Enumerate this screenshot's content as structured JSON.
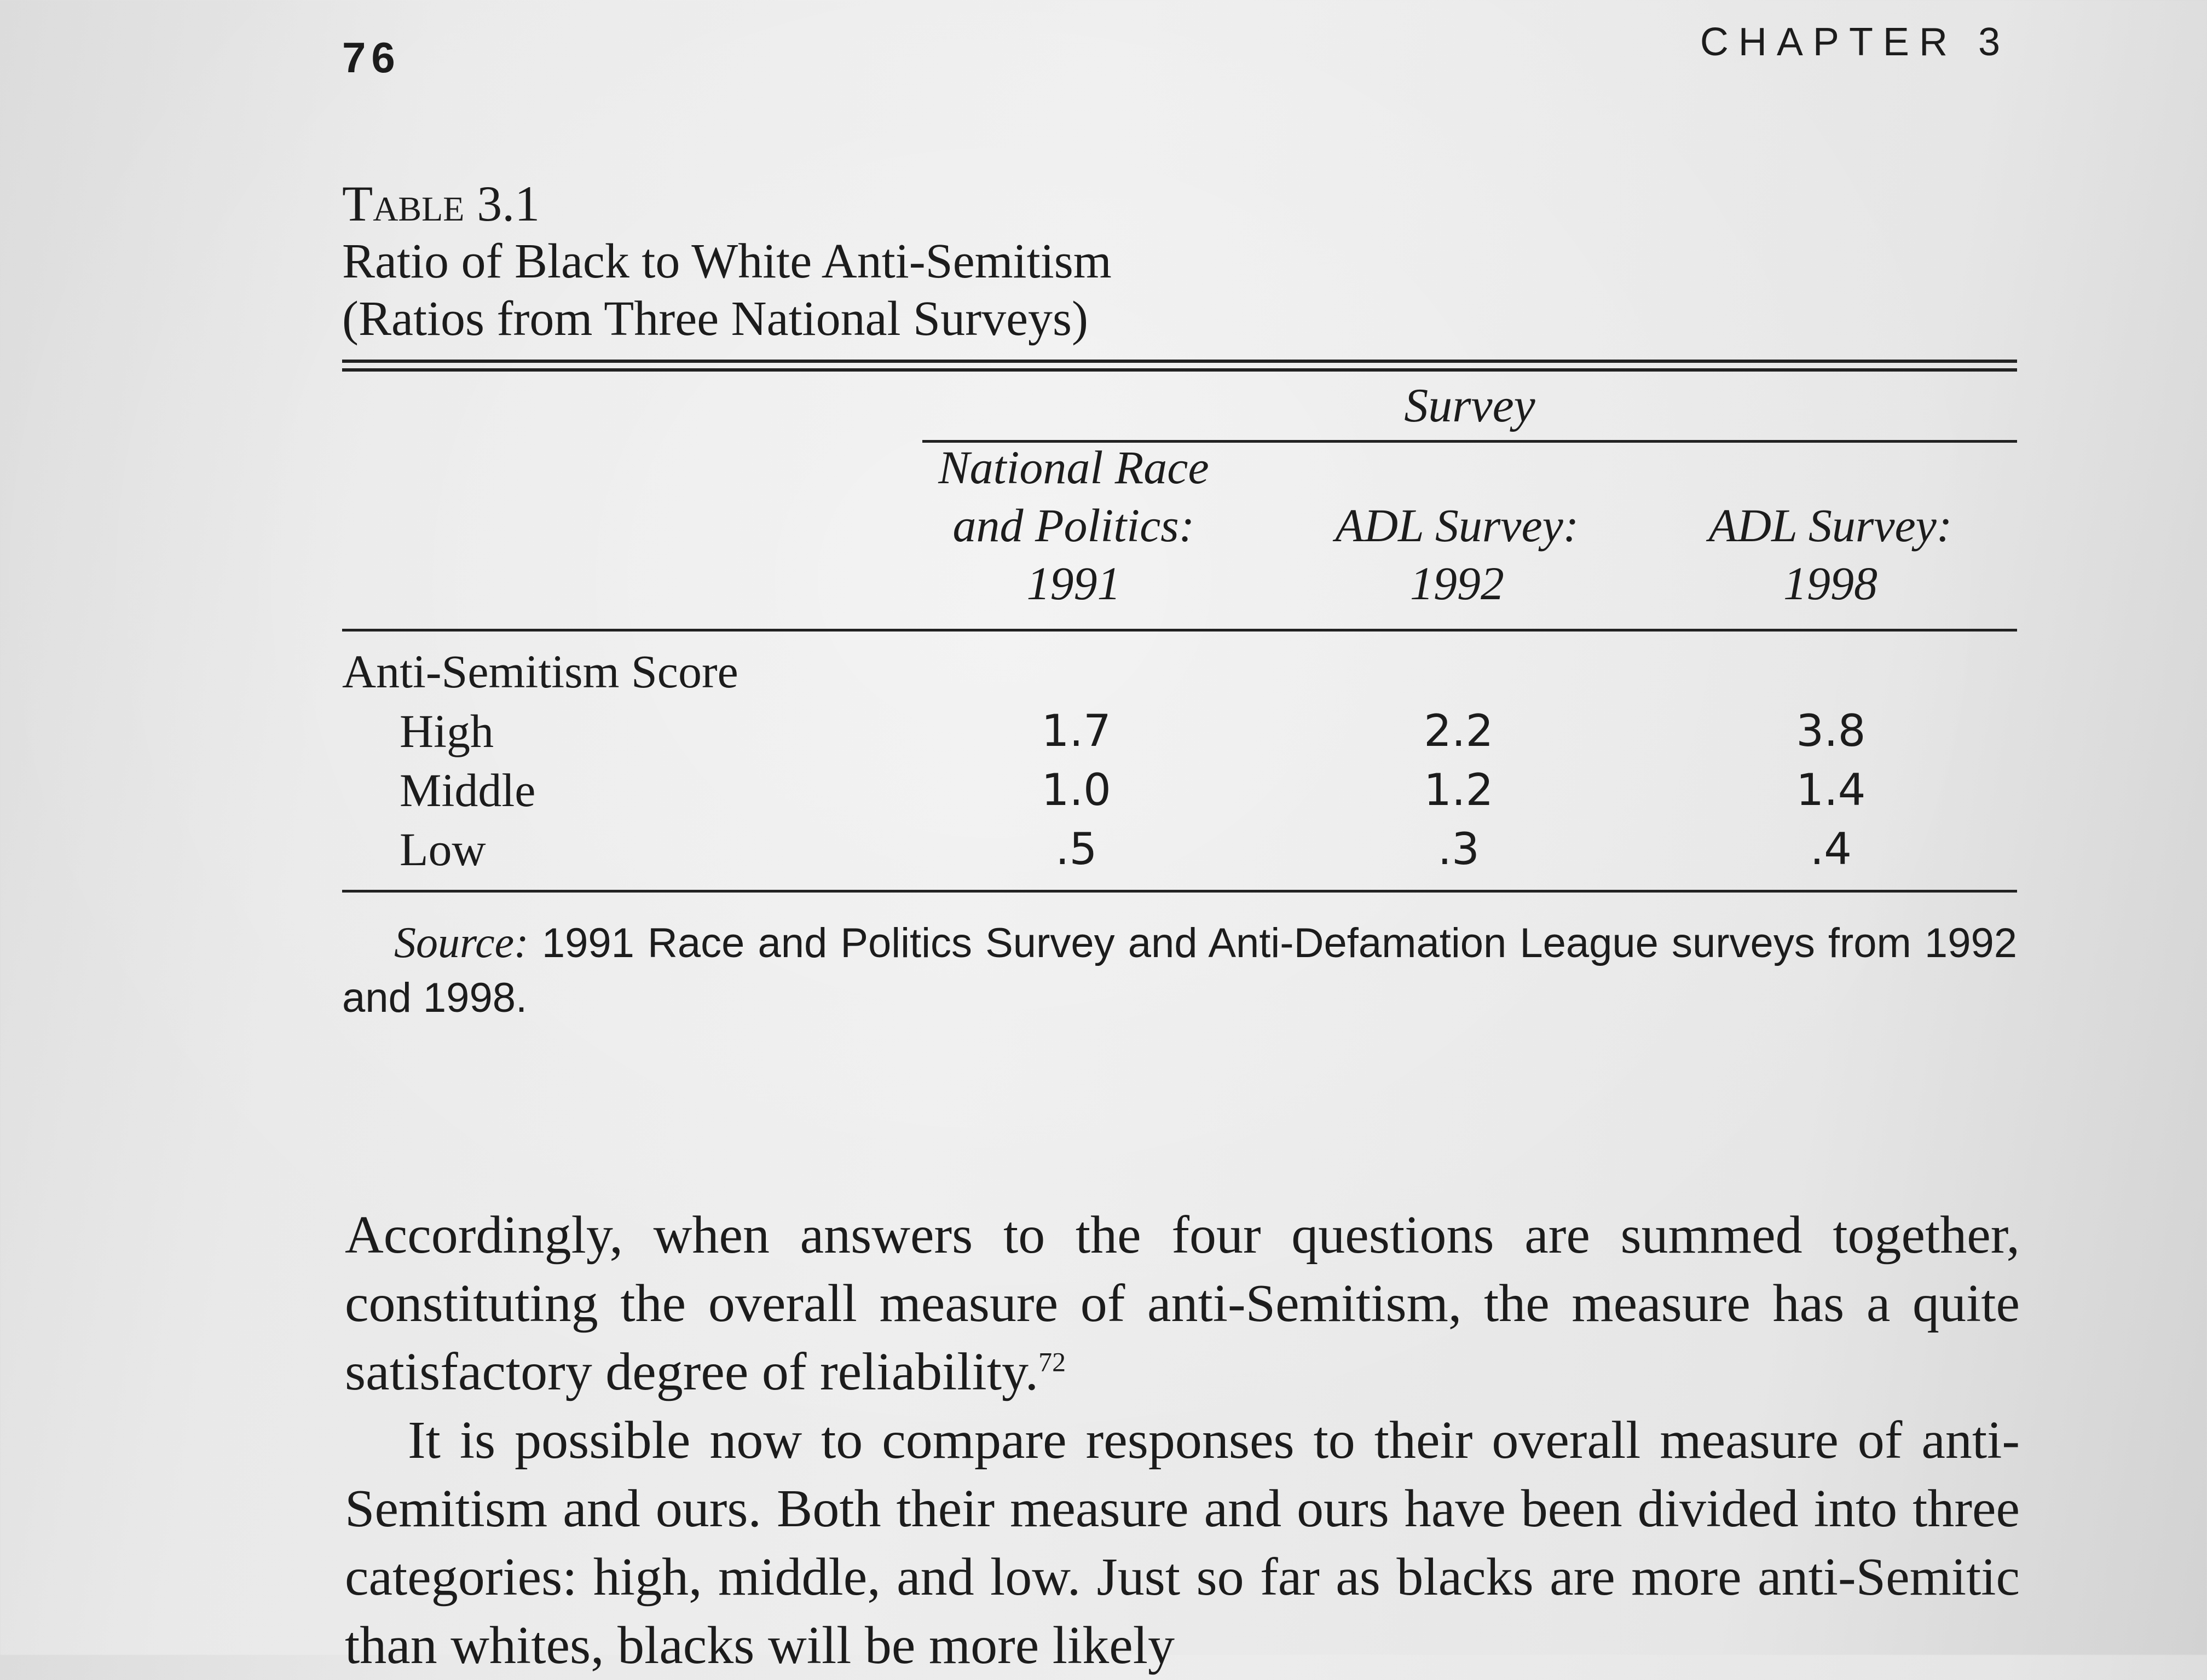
{
  "page": {
    "number": "76",
    "running_head": "CHAPTER 3"
  },
  "table": {
    "label": "Table 3.1",
    "title_line1": "Ratio of Black to White Anti-Semitism",
    "title_line2": "(Ratios from Three National Surveys)",
    "spanner": "Survey",
    "columns": [
      {
        "line1": "National Race",
        "line2": "and Politics:",
        "line3": "1991"
      },
      {
        "line1": "",
        "line2": "ADL Survey:",
        "line3": "1992"
      },
      {
        "line1": "",
        "line2": "ADL Survey:",
        "line3": "1998"
      }
    ],
    "row_group_label": "Anti-Semitism Score",
    "rows": [
      {
        "label": "High",
        "values": [
          "1.7",
          "2.2",
          "3.8"
        ]
      },
      {
        "label": "Middle",
        "values": [
          "1.0",
          "1.2",
          "1.4"
        ]
      },
      {
        "label": "Low",
        "values": [
          ".5",
          ".3",
          ".4"
        ]
      }
    ],
    "source_label": "Source:",
    "source_text": " 1991 Race and Politics Survey and Anti-Defamation League surveys from 1992 and 1998."
  },
  "body": {
    "para1": "Accordingly, when answers to the four questions are summed together, constituting the overall measure of anti-Semitism, the measure has a quite satisfactory degree of reliability.",
    "para1_note": "72",
    "para2": "It is possible now to compare responses to their overall measure of anti-Semitism and ours. Both their measure and ours have been divided into three categories: high, middle, and low. Just so far as blacks are more anti-Semitic than whites, blacks will be more likely"
  }
}
